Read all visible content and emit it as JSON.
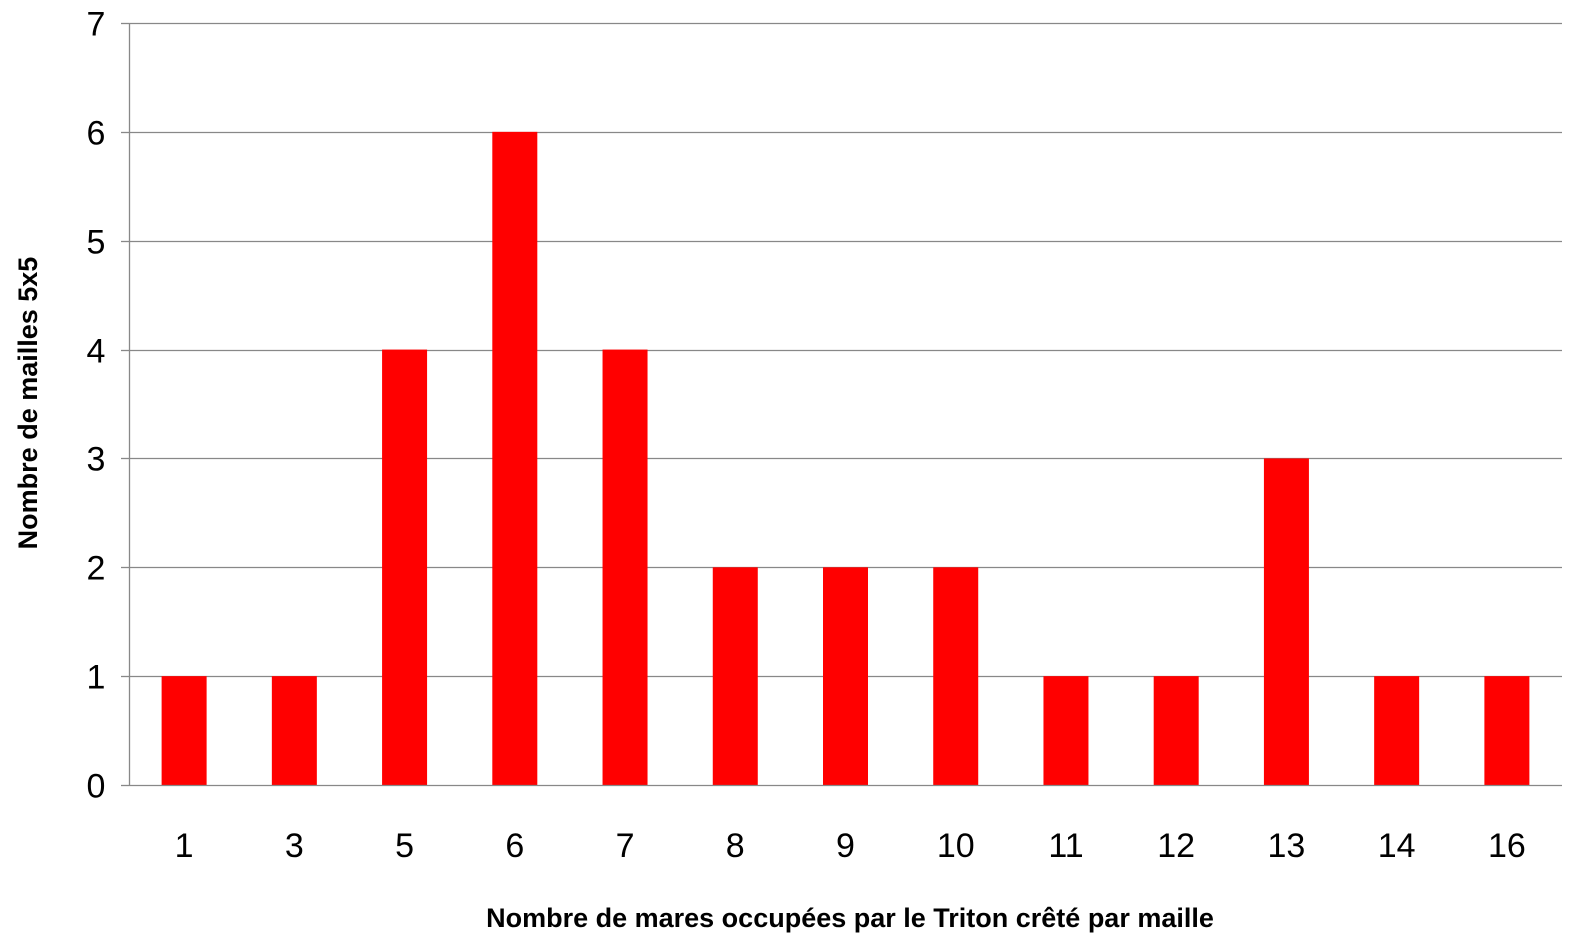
{
  "chart_data": {
    "type": "bar",
    "title": "",
    "xlabel": "Nombre de mares occupées  par le Triton crêté par maille",
    "ylabel": "Nombre de mailles 5x5",
    "categories": [
      "1",
      "3",
      "5",
      "6",
      "7",
      "8",
      "9",
      "10",
      "11",
      "12",
      "13",
      "14",
      "16"
    ],
    "values": [
      1,
      1,
      4,
      6,
      4,
      2,
      2,
      2,
      1,
      1,
      3,
      1,
      1
    ],
    "ylim": [
      0,
      7
    ],
    "yticks": [
      "0",
      "1",
      "2",
      "3",
      "4",
      "5",
      "6",
      "7"
    ],
    "grid": true,
    "legend": "none",
    "bar_color": "#ff0000",
    "grid_color": "#888888"
  }
}
